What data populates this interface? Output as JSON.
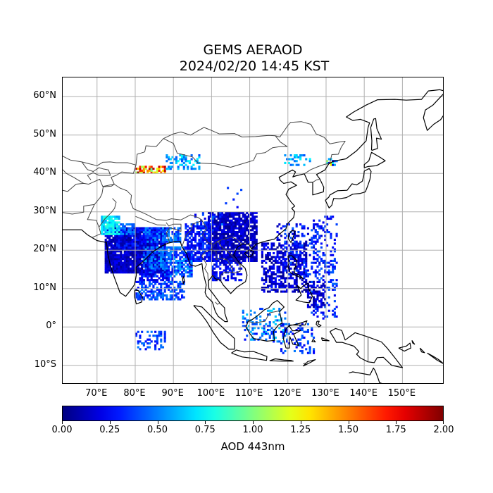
{
  "title": {
    "line1": "GEMS AERAOD",
    "line2": "2024/02/20 14:45 KST"
  },
  "map": {
    "lon_range": [
      61,
      161
    ],
    "lat_range": [
      -15,
      65
    ],
    "lat_ticks": [
      {
        "value": 60,
        "label": "60°N"
      },
      {
        "value": 50,
        "label": "50°N"
      },
      {
        "value": 40,
        "label": "40°N"
      },
      {
        "value": 30,
        "label": "30°N"
      },
      {
        "value": 20,
        "label": "20°N"
      },
      {
        "value": 10,
        "label": "10°N"
      },
      {
        "value": 0,
        "label": "0°"
      },
      {
        "value": -10,
        "label": "10°S"
      }
    ],
    "lon_ticks": [
      {
        "value": 70,
        "label": "70°E"
      },
      {
        "value": 80,
        "label": "80°E"
      },
      {
        "value": 90,
        "label": "90°E"
      },
      {
        "value": 100,
        "label": "100°E"
      },
      {
        "value": 110,
        "label": "110°E"
      },
      {
        "value": 120,
        "label": "120°E"
      },
      {
        "value": 130,
        "label": "130°E"
      },
      {
        "value": 140,
        "label": "140°E"
      },
      {
        "value": 150,
        "label": "150°E"
      }
    ],
    "grid": true,
    "colors": {
      "grid": "#b0b0b0",
      "coast": "#000000",
      "border": "#444444"
    }
  },
  "colorbar": {
    "label": "AOD 443nm",
    "min": 0.0,
    "max": 2.0,
    "colormap": "jet",
    "ticks": [
      "0.00",
      "0.25",
      "0.50",
      "0.75",
      "1.00",
      "1.25",
      "1.50",
      "1.75",
      "2.00"
    ]
  }
}
